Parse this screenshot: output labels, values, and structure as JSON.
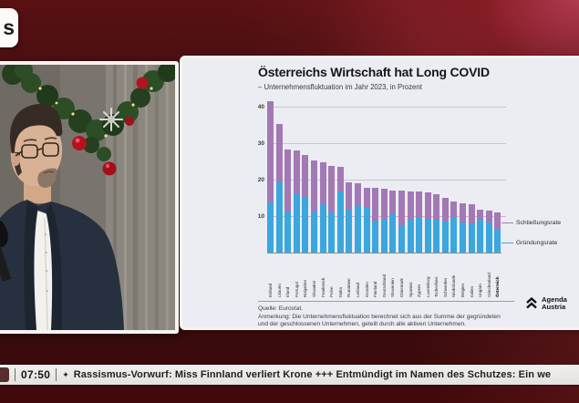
{
  "channel_logo": {
    "partial_text": "s"
  },
  "chart_panel": {
    "title": "Österreichs Wirtschaft hat Long COVID",
    "subtitle": "– Unternehmensfluktuation im Jahr 2023, in Prozent",
    "source": "Quelle: Eurostat.",
    "note_line1": "Anmerkung: Die Unternehmensfluktuation berechnet sich aus der Summe der gegründeten",
    "note_line2": "und der geschlossenen Unternehmen, geteilt durch alle aktiven Unternehmen.",
    "brand_line1": "Agenda",
    "brand_line2": "Austria"
  },
  "chart_data": {
    "type": "bar",
    "stacked": true,
    "title": "Österreichs Wirtschaft hat Long COVID",
    "subtitle": "Unternehmensfluktuation im Jahr 2023, in Prozent",
    "ylim": [
      0,
      43
    ],
    "yticks": [
      10,
      20,
      30,
      40
    ],
    "grid_color": "#c7c7cd",
    "grid_color_low": "#e3aab6",
    "legend_position": "right",
    "highlight_category": "Österreich",
    "categories": [
      "Estland",
      "Litauen",
      "Irland",
      "Portugal",
      "Bulgarien",
      "Slowakei",
      "Frankreich",
      "Polen",
      "Malta",
      "Rumänien",
      "Lettland",
      "Kroatien",
      "Finnland",
      "Deutschland",
      "Slowenien",
      "Dänemark",
      "Spanien",
      "Zypern",
      "Luxemburg",
      "Tschechien",
      "Schweden",
      "Niederlande",
      "Belgien",
      "Italien",
      "Ungarn",
      "Griechenland",
      "Österreich"
    ],
    "series": [
      {
        "name": "Gründungsrate",
        "color": "#3ba7de",
        "values": [
          14.0,
          19.5,
          11.5,
          16.5,
          15.3,
          11.5,
          13.5,
          11.2,
          17.0,
          12.0,
          13.0,
          12.5,
          9.0,
          9.5,
          10.7,
          7.5,
          9.5,
          9.7,
          9.5,
          9.3,
          8.7,
          9.7,
          8.5,
          8.2,
          9.5,
          8.5,
          6.6
        ]
      },
      {
        "name": "Schließungsrate",
        "color": "#a379b5",
        "values": [
          27.8,
          16.0,
          16.9,
          11.7,
          11.7,
          14.0,
          11.5,
          12.8,
          6.7,
          7.5,
          6.2,
          5.5,
          9.0,
          8.2,
          6.5,
          9.7,
          7.5,
          7.3,
          7.3,
          6.9,
          6.5,
          4.5,
          5.2,
          5.3,
          2.5,
          3.3,
          4.7
        ]
      }
    ],
    "legend": [
      {
        "label": "Schließungsrate",
        "color": "#a379b5"
      },
      {
        "label": "Gründungsrate",
        "color": "#3ba7de"
      }
    ]
  },
  "ticker": {
    "time": "07:50",
    "bullet": "✦",
    "text": "Rassismus-Vorwurf: Miss Finnland verliert Krone +++ Entmündigt im Namen des Schutzes: Ein we"
  }
}
